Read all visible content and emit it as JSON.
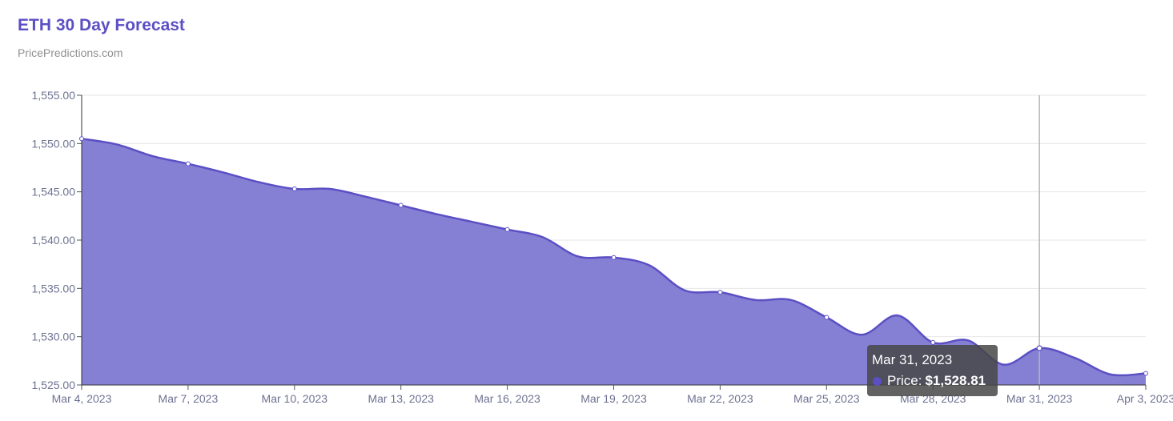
{
  "header": {
    "title": "ETH 30 Day Forecast",
    "subtitle": "PricePredictions.com"
  },
  "tooltip": {
    "date": "Mar 31, 2023",
    "label": "Price:",
    "value": "$1,528.81"
  },
  "colors": {
    "title": "#5b4fc4",
    "line": "#5b4fc4",
    "fill": "#8580d3",
    "grid": "#e6e6e6",
    "crosshair": "#b5b5b5"
  },
  "chart_data": {
    "type": "area",
    "title": "ETH 30 Day Forecast",
    "subtitle": "PricePredictions.com",
    "ylim": [
      1525,
      1555
    ],
    "y_ticks": [
      "1,525.00",
      "1,530.00",
      "1,535.00",
      "1,540.00",
      "1,545.00",
      "1,550.00",
      "1,555.00"
    ],
    "y_tick_values": [
      1525,
      1530,
      1535,
      1540,
      1545,
      1550,
      1555
    ],
    "x_tick_labels": [
      "Mar 4, 2023",
      "Mar 7, 2023",
      "Mar 10, 2023",
      "Mar 13, 2023",
      "Mar 16, 2023",
      "Mar 19, 2023",
      "Mar 22, 2023",
      "Mar 25, 2023",
      "Mar 28, 2023",
      "Mar 31, 2023",
      "Apr 3, 2023"
    ],
    "x": [
      "2023-03-04",
      "2023-03-05",
      "2023-03-06",
      "2023-03-07",
      "2023-03-08",
      "2023-03-09",
      "2023-03-10",
      "2023-03-11",
      "2023-03-12",
      "2023-03-13",
      "2023-03-14",
      "2023-03-15",
      "2023-03-16",
      "2023-03-17",
      "2023-03-18",
      "2023-03-19",
      "2023-03-20",
      "2023-03-21",
      "2023-03-22",
      "2023-03-23",
      "2023-03-24",
      "2023-03-25",
      "2023-03-26",
      "2023-03-27",
      "2023-03-28",
      "2023-03-29",
      "2023-03-30",
      "2023-03-31",
      "2023-04-01",
      "2023-04-02",
      "2023-04-03"
    ],
    "series": [
      {
        "name": "Price",
        "values": [
          1550.5,
          1549.9,
          1548.7,
          1547.9,
          1547.0,
          1546.0,
          1545.3,
          1545.3,
          1544.5,
          1543.6,
          1542.7,
          1541.9,
          1541.1,
          1540.3,
          1538.3,
          1538.2,
          1537.4,
          1534.8,
          1534.6,
          1533.8,
          1533.8,
          1532.0,
          1530.2,
          1532.2,
          1529.4,
          1529.6,
          1527.1,
          1528.81,
          1527.8,
          1526.1,
          1526.2
        ]
      }
    ],
    "grid": true,
    "legend": "none",
    "highlight_index": 27
  }
}
